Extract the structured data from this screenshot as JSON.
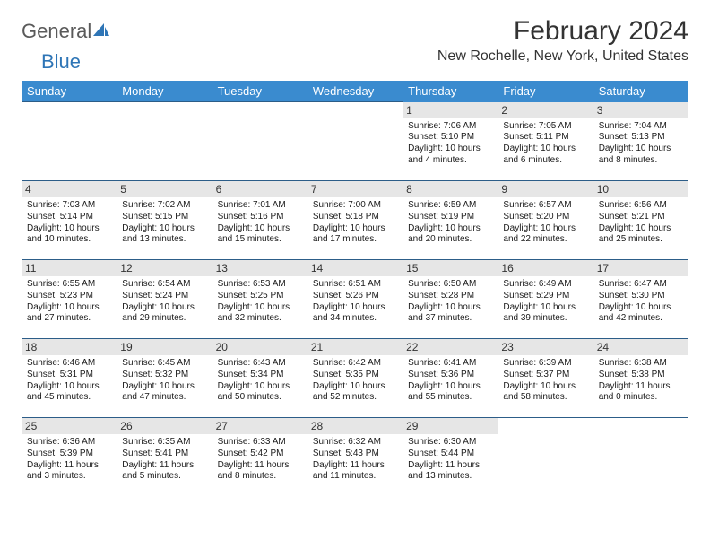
{
  "logo": {
    "text1": "General",
    "text2": "Blue",
    "color_gray": "#5a5a5a",
    "color_blue": "#2e75b6"
  },
  "title": "February 2024",
  "location": "New Rochelle, New York, United States",
  "header_bg": "#3a8bcf",
  "header_fg": "#ffffff",
  "divider_color": "#2c5d88",
  "daynum_bg": "#e6e6e6",
  "text_color": "#1a1a1a",
  "background": "#ffffff",
  "info_fontsize": 10,
  "days": [
    "Sunday",
    "Monday",
    "Tuesday",
    "Wednesday",
    "Thursday",
    "Friday",
    "Saturday"
  ],
  "weeks": [
    [
      null,
      null,
      null,
      null,
      {
        "n": "1",
        "sr": "7:06 AM",
        "ss": "5:10 PM",
        "dl": "10 hours and 4 minutes."
      },
      {
        "n": "2",
        "sr": "7:05 AM",
        "ss": "5:11 PM",
        "dl": "10 hours and 6 minutes."
      },
      {
        "n": "3",
        "sr": "7:04 AM",
        "ss": "5:13 PM",
        "dl": "10 hours and 8 minutes."
      }
    ],
    [
      {
        "n": "4",
        "sr": "7:03 AM",
        "ss": "5:14 PM",
        "dl": "10 hours and 10 minutes."
      },
      {
        "n": "5",
        "sr": "7:02 AM",
        "ss": "5:15 PM",
        "dl": "10 hours and 13 minutes."
      },
      {
        "n": "6",
        "sr": "7:01 AM",
        "ss": "5:16 PM",
        "dl": "10 hours and 15 minutes."
      },
      {
        "n": "7",
        "sr": "7:00 AM",
        "ss": "5:18 PM",
        "dl": "10 hours and 17 minutes."
      },
      {
        "n": "8",
        "sr": "6:59 AM",
        "ss": "5:19 PM",
        "dl": "10 hours and 20 minutes."
      },
      {
        "n": "9",
        "sr": "6:57 AM",
        "ss": "5:20 PM",
        "dl": "10 hours and 22 minutes."
      },
      {
        "n": "10",
        "sr": "6:56 AM",
        "ss": "5:21 PM",
        "dl": "10 hours and 25 minutes."
      }
    ],
    [
      {
        "n": "11",
        "sr": "6:55 AM",
        "ss": "5:23 PM",
        "dl": "10 hours and 27 minutes."
      },
      {
        "n": "12",
        "sr": "6:54 AM",
        "ss": "5:24 PM",
        "dl": "10 hours and 29 minutes."
      },
      {
        "n": "13",
        "sr": "6:53 AM",
        "ss": "5:25 PM",
        "dl": "10 hours and 32 minutes."
      },
      {
        "n": "14",
        "sr": "6:51 AM",
        "ss": "5:26 PM",
        "dl": "10 hours and 34 minutes."
      },
      {
        "n": "15",
        "sr": "6:50 AM",
        "ss": "5:28 PM",
        "dl": "10 hours and 37 minutes."
      },
      {
        "n": "16",
        "sr": "6:49 AM",
        "ss": "5:29 PM",
        "dl": "10 hours and 39 minutes."
      },
      {
        "n": "17",
        "sr": "6:47 AM",
        "ss": "5:30 PM",
        "dl": "10 hours and 42 minutes."
      }
    ],
    [
      {
        "n": "18",
        "sr": "6:46 AM",
        "ss": "5:31 PM",
        "dl": "10 hours and 45 minutes."
      },
      {
        "n": "19",
        "sr": "6:45 AM",
        "ss": "5:32 PM",
        "dl": "10 hours and 47 minutes."
      },
      {
        "n": "20",
        "sr": "6:43 AM",
        "ss": "5:34 PM",
        "dl": "10 hours and 50 minutes."
      },
      {
        "n": "21",
        "sr": "6:42 AM",
        "ss": "5:35 PM",
        "dl": "10 hours and 52 minutes."
      },
      {
        "n": "22",
        "sr": "6:41 AM",
        "ss": "5:36 PM",
        "dl": "10 hours and 55 minutes."
      },
      {
        "n": "23",
        "sr": "6:39 AM",
        "ss": "5:37 PM",
        "dl": "10 hours and 58 minutes."
      },
      {
        "n": "24",
        "sr": "6:38 AM",
        "ss": "5:38 PM",
        "dl": "11 hours and 0 minutes."
      }
    ],
    [
      {
        "n": "25",
        "sr": "6:36 AM",
        "ss": "5:39 PM",
        "dl": "11 hours and 3 minutes."
      },
      {
        "n": "26",
        "sr": "6:35 AM",
        "ss": "5:41 PM",
        "dl": "11 hours and 5 minutes."
      },
      {
        "n": "27",
        "sr": "6:33 AM",
        "ss": "5:42 PM",
        "dl": "11 hours and 8 minutes."
      },
      {
        "n": "28",
        "sr": "6:32 AM",
        "ss": "5:43 PM",
        "dl": "11 hours and 11 minutes."
      },
      {
        "n": "29",
        "sr": "6:30 AM",
        "ss": "5:44 PM",
        "dl": "11 hours and 13 minutes."
      },
      null,
      null
    ]
  ],
  "labels": {
    "sunrise": "Sunrise:",
    "sunset": "Sunset:",
    "daylight": "Daylight:"
  }
}
